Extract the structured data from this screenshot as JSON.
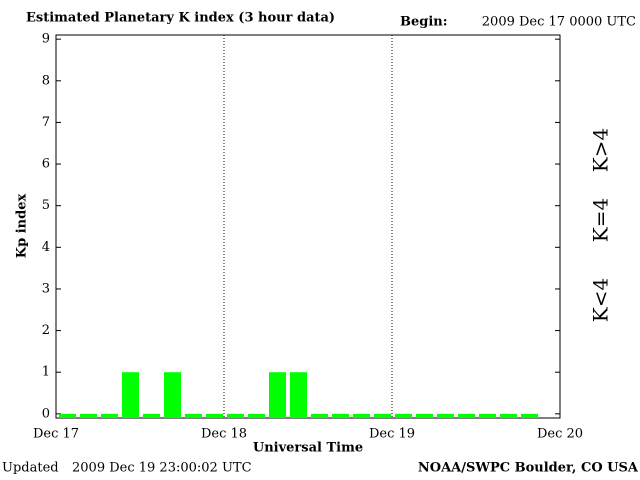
{
  "chart_data": {
    "type": "bar",
    "title": "Estimated Planetary K index (3 hour data)",
    "begin_label": "Begin:",
    "begin": "2009 Dec 17 0000 UTC",
    "y_label": "Kp index",
    "x_label": "Universal Time",
    "updated_label": "Updated",
    "updated": "2009 Dec 19 23:00:02 UTC",
    "credit": "NOAA/SWPC Boulder, CO USA",
    "categories": [
      null,
      null,
      null,
      null,
      null,
      null,
      null,
      null,
      null,
      null,
      null,
      null,
      null,
      null,
      null,
      null,
      null,
      null,
      null,
      null,
      null,
      null,
      null,
      null
    ],
    "values": [
      0,
      0,
      0,
      1,
      0,
      1,
      0,
      0,
      0,
      0,
      1,
      1,
      0,
      0,
      0,
      0,
      0,
      0,
      0,
      0,
      0,
      0,
      0,
      null
    ],
    "color": "#00ff00",
    "xlim": [
      0,
      24
    ],
    "xticks": [
      {
        "value": 0,
        "label": "Dec 17"
      },
      {
        "value": 8,
        "label": "Dec 18"
      },
      {
        "value": 16,
        "label": "Dec 19"
      },
      {
        "value": 24,
        "label": "Dec 20"
      }
    ],
    "ylim": [
      -0.1,
      9.1
    ],
    "yticks": [
      0,
      1,
      2,
      3,
      4,
      5,
      6,
      7,
      8,
      9
    ],
    "grid": true,
    "legend": [
      {
        "name": "K<4",
        "color": "#00ff00"
      },
      {
        "name": "K=4",
        "color": "#ffd700"
      },
      {
        "name": "K>4",
        "color": "#ff2000"
      }
    ]
  }
}
